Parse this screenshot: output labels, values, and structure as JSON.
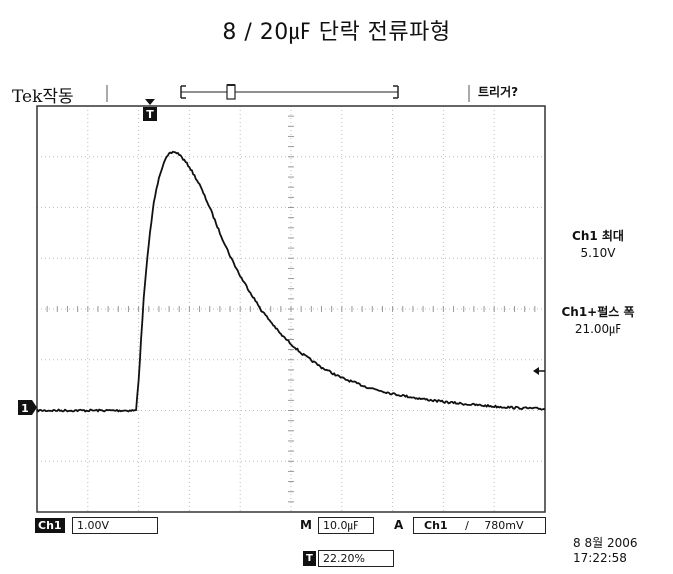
{
  "title": "8 / 20㎌ 단락 전류파형",
  "header": {
    "brand": "Tek작동",
    "trigger_marker": "T",
    "trigger_state": "트리거?"
  },
  "right_panel": {
    "ch1_max_label": "Ch1 최대",
    "ch1_max_value": "5.10V",
    "ch1_pulse_label": "Ch1+펄스 폭",
    "ch1_pulse_value": "21.00㎌"
  },
  "channel_marker": "1",
  "footer": {
    "ch1_badge": "Ch1",
    "ch1_scale": "1.00V",
    "timebase_label": "M",
    "timebase_value": "10.0㎌",
    "trigger_mode_label": "A",
    "trigger_channel": "Ch1",
    "trigger_slope": "∕",
    "trigger_level": "780mV",
    "trigger_pos_badge": "T",
    "trigger_pos_value": "22.20%",
    "date": "8 8월 2006",
    "time": "17:22:58"
  },
  "chart_data": {
    "type": "line",
    "title": "",
    "xlabel": "",
    "ylabel": "",
    "x_divisions": 10,
    "y_divisions": 8,
    "time_per_div_us": 10,
    "volts_per_div": 1.0,
    "baseline_div_from_top": 6.0,
    "series": [
      {
        "time_us": [
          0,
          10,
          19.5,
          20,
          21,
          22,
          23,
          24,
          25,
          26,
          27,
          28,
          30,
          32,
          34,
          36,
          38,
          40,
          44,
          48,
          52,
          56,
          60,
          65,
          70,
          75,
          80,
          85,
          90,
          95,
          100
        ],
        "volts": [
          0,
          0,
          0,
          0.6,
          2.2,
          3.3,
          4.1,
          4.6,
          4.9,
          5.05,
          5.1,
          5.05,
          4.8,
          4.45,
          4.0,
          3.5,
          3.05,
          2.65,
          2.0,
          1.5,
          1.13,
          0.85,
          0.64,
          0.46,
          0.33,
          0.24,
          0.17,
          0.12,
          0.08,
          0.05,
          0.03
        ]
      }
    ],
    "grid": true
  }
}
